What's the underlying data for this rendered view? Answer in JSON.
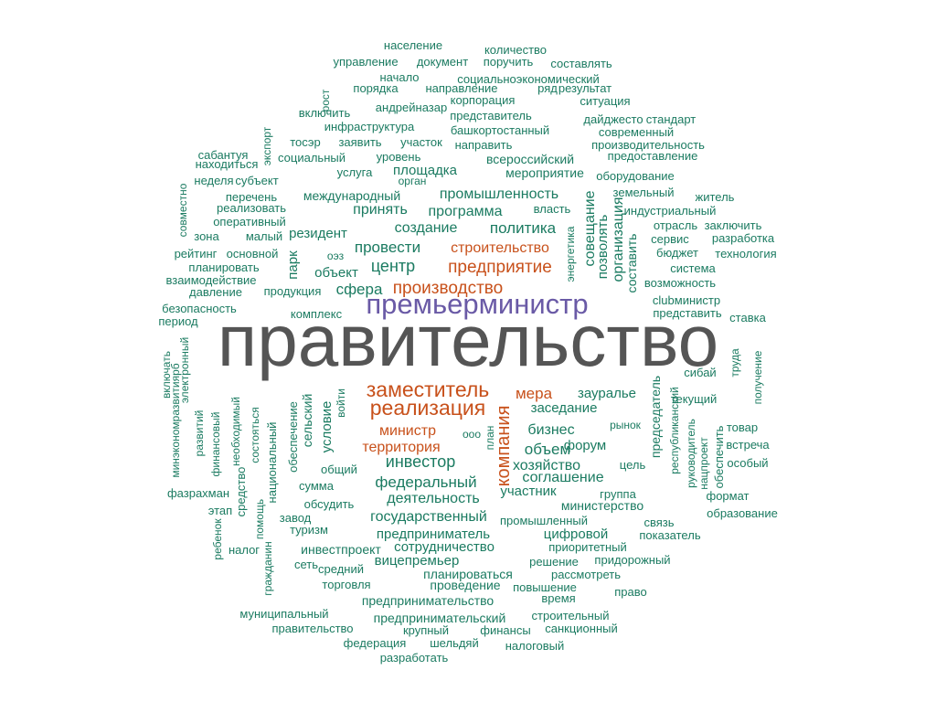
{
  "chart_data": {
    "type": "word-cloud",
    "colors": {
      "main": "#555555",
      "teal": "#1b7b61",
      "orange": "#c8511b",
      "purple": "#6a5aa6"
    },
    "words": [
      {
        "text": "правительство",
        "color": "main"
      },
      {
        "text": "премьерминистр",
        "color": "purple"
      },
      {
        "text": "заместитель",
        "color": "orange"
      },
      {
        "text": "реализация",
        "color": "orange"
      },
      {
        "text": "производство",
        "color": "orange"
      },
      {
        "text": "предприятие",
        "color": "orange"
      },
      {
        "text": "строительство",
        "color": "orange"
      },
      {
        "text": "компания",
        "color": "orange"
      },
      {
        "text": "мера",
        "color": "orange"
      },
      {
        "text": "министр",
        "color": "orange"
      },
      {
        "text": "территория",
        "color": "orange"
      },
      {
        "text": "население",
        "color": "teal"
      },
      {
        "text": "количество",
        "color": "teal"
      },
      {
        "text": "управление",
        "color": "teal"
      },
      {
        "text": "документ",
        "color": "teal"
      },
      {
        "text": "поручить",
        "color": "teal"
      },
      {
        "text": "составлять",
        "color": "teal"
      },
      {
        "text": "начало",
        "color": "teal"
      },
      {
        "text": "социальноэкономический",
        "color": "teal"
      },
      {
        "text": "порядка",
        "color": "teal"
      },
      {
        "text": "направление",
        "color": "teal"
      },
      {
        "text": "ряд",
        "color": "teal"
      },
      {
        "text": "результат",
        "color": "teal"
      },
      {
        "text": "рост",
        "color": "teal"
      },
      {
        "text": "андрейназар",
        "color": "teal"
      },
      {
        "text": "корпорация",
        "color": "teal"
      },
      {
        "text": "ситуация",
        "color": "teal"
      },
      {
        "text": "включить",
        "color": "teal"
      },
      {
        "text": "представитель",
        "color": "teal"
      },
      {
        "text": "дайджесто",
        "color": "teal"
      },
      {
        "text": "стандарт",
        "color": "teal"
      },
      {
        "text": "экспорт",
        "color": "teal"
      },
      {
        "text": "инфраструктура",
        "color": "teal"
      },
      {
        "text": "башкортостанный",
        "color": "teal"
      },
      {
        "text": "современный",
        "color": "teal"
      },
      {
        "text": "тосэр",
        "color": "teal"
      },
      {
        "text": "заявить",
        "color": "teal"
      },
      {
        "text": "участок",
        "color": "teal"
      },
      {
        "text": "направить",
        "color": "teal"
      },
      {
        "text": "производительность",
        "color": "teal"
      },
      {
        "text": "сабантуя",
        "color": "teal"
      },
      {
        "text": "социальный",
        "color": "teal"
      },
      {
        "text": "уровень",
        "color": "teal"
      },
      {
        "text": "всероссийский",
        "color": "teal"
      },
      {
        "text": "предоставление",
        "color": "teal"
      },
      {
        "text": "находиться",
        "color": "teal"
      },
      {
        "text": "площадка",
        "color": "teal"
      },
      {
        "text": "услуга",
        "color": "teal"
      },
      {
        "text": "мероприятие",
        "color": "teal"
      },
      {
        "text": "неделя",
        "color": "teal"
      },
      {
        "text": "субъект",
        "color": "teal"
      },
      {
        "text": "орган",
        "color": "teal"
      },
      {
        "text": "оборудование",
        "color": "teal"
      },
      {
        "text": "совместно",
        "color": "teal"
      },
      {
        "text": "перечень",
        "color": "teal"
      },
      {
        "text": "международный",
        "color": "teal"
      },
      {
        "text": "промышленность",
        "color": "teal"
      },
      {
        "text": "земельный",
        "color": "teal"
      },
      {
        "text": "житель",
        "color": "teal"
      },
      {
        "text": "реализовать",
        "color": "teal"
      },
      {
        "text": "принять",
        "color": "teal"
      },
      {
        "text": "программа",
        "color": "teal"
      },
      {
        "text": "власть",
        "color": "teal"
      },
      {
        "text": "индустриальный",
        "color": "teal"
      },
      {
        "text": "совещание",
        "color": "teal"
      },
      {
        "text": "организация",
        "color": "teal"
      },
      {
        "text": "оперативный",
        "color": "teal"
      },
      {
        "text": "создание",
        "color": "teal"
      },
      {
        "text": "политика",
        "color": "teal"
      },
      {
        "text": "отрасль",
        "color": "teal"
      },
      {
        "text": "заключить",
        "color": "teal"
      },
      {
        "text": "зона",
        "color": "teal"
      },
      {
        "text": "малый",
        "color": "teal"
      },
      {
        "text": "резидент",
        "color": "teal"
      },
      {
        "text": "позволять",
        "color": "teal"
      },
      {
        "text": "сервис",
        "color": "teal"
      },
      {
        "text": "разработка",
        "color": "teal"
      },
      {
        "text": "рейтинг",
        "color": "teal"
      },
      {
        "text": "основной",
        "color": "teal"
      },
      {
        "text": "провести",
        "color": "teal"
      },
      {
        "text": "энергетика",
        "color": "teal"
      },
      {
        "text": "составить",
        "color": "teal"
      },
      {
        "text": "бюджет",
        "color": "teal"
      },
      {
        "text": "технология",
        "color": "teal"
      },
      {
        "text": "парк",
        "color": "teal"
      },
      {
        "text": "оэз",
        "color": "teal"
      },
      {
        "text": "планировать",
        "color": "teal"
      },
      {
        "text": "центр",
        "color": "teal"
      },
      {
        "text": "система",
        "color": "teal"
      },
      {
        "text": "объект",
        "color": "teal"
      },
      {
        "text": "взаимодействие",
        "color": "teal"
      },
      {
        "text": "возможность",
        "color": "teal"
      },
      {
        "text": "давление",
        "color": "teal"
      },
      {
        "text": "продукция",
        "color": "teal"
      },
      {
        "text": "сфера",
        "color": "teal"
      },
      {
        "text": "clubминистр",
        "color": "teal"
      },
      {
        "text": "безопасность",
        "color": "teal"
      },
      {
        "text": "комплекс",
        "color": "teal"
      },
      {
        "text": "представить",
        "color": "teal"
      },
      {
        "text": "период",
        "color": "teal"
      },
      {
        "text": "ставка",
        "color": "teal"
      },
      {
        "text": "включать",
        "color": "teal"
      },
      {
        "text": "минэкономразвитиярб",
        "color": "teal"
      },
      {
        "text": "электронный",
        "color": "teal"
      },
      {
        "text": "труда",
        "color": "teal"
      },
      {
        "text": "получение",
        "color": "teal"
      },
      {
        "text": "развитий",
        "color": "teal"
      },
      {
        "text": "финансовый",
        "color": "teal"
      },
      {
        "text": "необходимый",
        "color": "teal"
      },
      {
        "text": "состояться",
        "color": "teal"
      },
      {
        "text": "национальный",
        "color": "teal"
      },
      {
        "text": "обеспечение",
        "color": "teal"
      },
      {
        "text": "сельский",
        "color": "teal"
      },
      {
        "text": "условие",
        "color": "teal"
      },
      {
        "text": "войти",
        "color": "teal"
      },
      {
        "text": "зауралье",
        "color": "teal"
      },
      {
        "text": "председатель",
        "color": "teal"
      },
      {
        "text": "республиканский",
        "color": "teal"
      },
      {
        "text": "сибай",
        "color": "teal"
      },
      {
        "text": "текущий",
        "color": "teal"
      },
      {
        "text": "заседание",
        "color": "teal"
      },
      {
        "text": "рынок",
        "color": "teal"
      },
      {
        "text": "товар",
        "color": "teal"
      },
      {
        "text": "бизнес",
        "color": "teal"
      },
      {
        "text": "ооо",
        "color": "teal"
      },
      {
        "text": "план",
        "color": "teal"
      },
      {
        "text": "руководитель",
        "color": "teal"
      },
      {
        "text": "нацпроект",
        "color": "teal"
      },
      {
        "text": "обеспечить",
        "color": "teal"
      },
      {
        "text": "встреча",
        "color": "teal"
      },
      {
        "text": "объем",
        "color": "teal"
      },
      {
        "text": "форум",
        "color": "teal"
      },
      {
        "text": "инвестор",
        "color": "teal"
      },
      {
        "text": "хозяйство",
        "color": "teal"
      },
      {
        "text": "цель",
        "color": "teal"
      },
      {
        "text": "особый",
        "color": "teal"
      },
      {
        "text": "фазрахман",
        "color": "teal"
      },
      {
        "text": "средство",
        "color": "teal"
      },
      {
        "text": "общий",
        "color": "teal"
      },
      {
        "text": "федеральный",
        "color": "teal"
      },
      {
        "text": "соглашение",
        "color": "teal"
      },
      {
        "text": "сумма",
        "color": "teal"
      },
      {
        "text": "участник",
        "color": "teal"
      },
      {
        "text": "группа",
        "color": "teal"
      },
      {
        "text": "формат",
        "color": "teal"
      },
      {
        "text": "деятельность",
        "color": "teal"
      },
      {
        "text": "обсудить",
        "color": "teal"
      },
      {
        "text": "министерство",
        "color": "teal"
      },
      {
        "text": "этап",
        "color": "teal"
      },
      {
        "text": "помощь",
        "color": "teal"
      },
      {
        "text": "образование",
        "color": "teal"
      },
      {
        "text": "завод",
        "color": "teal"
      },
      {
        "text": "государственный",
        "color": "teal"
      },
      {
        "text": "промышленный",
        "color": "teal"
      },
      {
        "text": "связь",
        "color": "teal"
      },
      {
        "text": "ребенок",
        "color": "teal"
      },
      {
        "text": "туризм",
        "color": "teal"
      },
      {
        "text": "предприниматель",
        "color": "teal"
      },
      {
        "text": "цифровой",
        "color": "teal"
      },
      {
        "text": "показатель",
        "color": "teal"
      },
      {
        "text": "налог",
        "color": "teal"
      },
      {
        "text": "гражданин",
        "color": "teal"
      },
      {
        "text": "сотрудничество",
        "color": "teal"
      },
      {
        "text": "приоритетный",
        "color": "teal"
      },
      {
        "text": "инвестпроект",
        "color": "teal"
      },
      {
        "text": "вицепремьер",
        "color": "teal"
      },
      {
        "text": "сеть",
        "color": "teal"
      },
      {
        "text": "решение",
        "color": "teal"
      },
      {
        "text": "придорожный",
        "color": "teal"
      },
      {
        "text": "средний",
        "color": "teal"
      },
      {
        "text": "планироваться",
        "color": "teal"
      },
      {
        "text": "рассмотреть",
        "color": "teal"
      },
      {
        "text": "торговля",
        "color": "teal"
      },
      {
        "text": "проведение",
        "color": "teal"
      },
      {
        "text": "повышение",
        "color": "teal"
      },
      {
        "text": "право",
        "color": "teal"
      },
      {
        "text": "время",
        "color": "teal"
      },
      {
        "text": "предпринимательство",
        "color": "teal"
      },
      {
        "text": "муниципальный",
        "color": "teal"
      },
      {
        "text": "строительный",
        "color": "teal"
      },
      {
        "text": "предпринимательский",
        "color": "teal"
      },
      {
        "text": "правительство",
        "color": "teal"
      },
      {
        "text": "крупный",
        "color": "teal"
      },
      {
        "text": "финансы",
        "color": "teal"
      },
      {
        "text": "санкционный",
        "color": "teal"
      },
      {
        "text": "федерация",
        "color": "teal"
      },
      {
        "text": "шельдяй",
        "color": "teal"
      },
      {
        "text": "налоговый",
        "color": "teal"
      },
      {
        "text": "разработать",
        "color": "teal"
      }
    ]
  }
}
